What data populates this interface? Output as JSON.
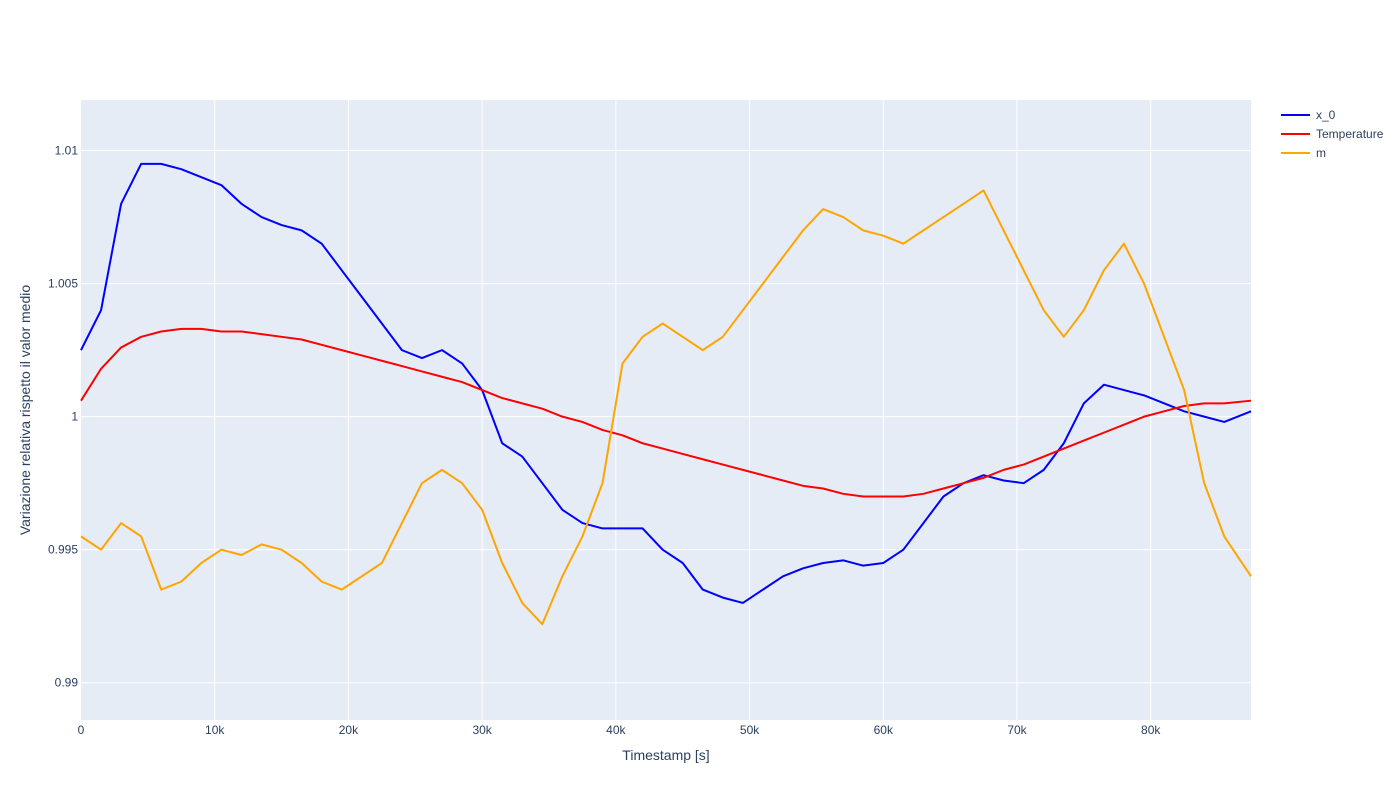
{
  "chart_data": {
    "type": "line",
    "title": "",
    "xlabel": "Timestamp [s]",
    "ylabel": "Variazione relativa rispetto il valor medio",
    "xlim": [
      0,
      87500
    ],
    "ylim": [
      0.9886,
      1.0119
    ],
    "x_ticks": [
      {
        "value": 0,
        "label": "0"
      },
      {
        "value": 10000,
        "label": "10k"
      },
      {
        "value": 20000,
        "label": "20k"
      },
      {
        "value": 30000,
        "label": "30k"
      },
      {
        "value": 40000,
        "label": "40k"
      },
      {
        "value": 50000,
        "label": "50k"
      },
      {
        "value": 60000,
        "label": "60k"
      },
      {
        "value": 70000,
        "label": "70k"
      },
      {
        "value": 80000,
        "label": "80k"
      }
    ],
    "y_ticks": [
      {
        "value": 0.99,
        "label": "0.99"
      },
      {
        "value": 0.995,
        "label": "0.995"
      },
      {
        "value": 1,
        "label": "1"
      },
      {
        "value": 1.005,
        "label": "1.005"
      },
      {
        "value": 1.01,
        "label": "1.01"
      }
    ],
    "grid": true,
    "legend_position": "top-right",
    "plot_background": "#e5ecf6",
    "series": [
      {
        "name": "x_0",
        "color": "#0000ff",
        "x": [
          0,
          1500,
          3000,
          4500,
          6000,
          7500,
          9000,
          10500,
          12000,
          13500,
          15000,
          16500,
          18000,
          19500,
          21000,
          22500,
          24000,
          25500,
          27000,
          28500,
          30000,
          31500,
          33000,
          34500,
          36000,
          37500,
          39000,
          40500,
          42000,
          43500,
          45000,
          46500,
          48000,
          49500,
          51000,
          52500,
          54000,
          55500,
          57000,
          58500,
          60000,
          61500,
          63000,
          64500,
          66000,
          67500,
          69000,
          70500,
          72000,
          73500,
          75000,
          76500,
          78000,
          79500,
          81000,
          82500,
          84000,
          85500,
          87500
        ],
        "y": [
          1.0025,
          1.004,
          1.008,
          1.0095,
          1.0095,
          1.0093,
          1.009,
          1.0087,
          1.008,
          1.0075,
          1.0072,
          1.007,
          1.0065,
          1.0055,
          1.0045,
          1.0035,
          1.0025,
          1.0022,
          1.0025,
          1.002,
          1.001,
          0.999,
          0.9985,
          0.9975,
          0.9965,
          0.996,
          0.9958,
          0.9958,
          0.9958,
          0.995,
          0.9945,
          0.9935,
          0.9932,
          0.993,
          0.9935,
          0.994,
          0.9943,
          0.9945,
          0.9946,
          0.9944,
          0.9945,
          0.995,
          0.996,
          0.997,
          0.9975,
          0.9978,
          0.9976,
          0.9975,
          0.998,
          0.999,
          1.0005,
          1.0012,
          1.001,
          1.0008,
          1.0005,
          1.0002,
          1.0,
          0.9998,
          1.0002
        ]
      },
      {
        "name": "Temperature",
        "color": "#ff0000",
        "x": [
          0,
          1500,
          3000,
          4500,
          6000,
          7500,
          9000,
          10500,
          12000,
          13500,
          15000,
          16500,
          18000,
          19500,
          21000,
          22500,
          24000,
          25500,
          27000,
          28500,
          30000,
          31500,
          33000,
          34500,
          36000,
          37500,
          39000,
          40500,
          42000,
          43500,
          45000,
          46500,
          48000,
          49500,
          51000,
          52500,
          54000,
          55500,
          57000,
          58500,
          60000,
          61500,
          63000,
          64500,
          66000,
          67500,
          69000,
          70500,
          72000,
          73500,
          75000,
          76500,
          78000,
          79500,
          81000,
          82500,
          84000,
          85500,
          87500
        ],
        "y": [
          1.0006,
          1.0018,
          1.0026,
          1.003,
          1.0032,
          1.0033,
          1.0033,
          1.0032,
          1.0032,
          1.0031,
          1.003,
          1.0029,
          1.0027,
          1.0025,
          1.0023,
          1.0021,
          1.0019,
          1.0017,
          1.0015,
          1.0013,
          1.001,
          1.0007,
          1.0005,
          1.0003,
          1.0,
          0.9998,
          0.9995,
          0.9993,
          0.999,
          0.9988,
          0.9986,
          0.9984,
          0.9982,
          0.998,
          0.9978,
          0.9976,
          0.9974,
          0.9973,
          0.9971,
          0.997,
          0.997,
          0.997,
          0.9971,
          0.9973,
          0.9975,
          0.9977,
          0.998,
          0.9982,
          0.9985,
          0.9988,
          0.9991,
          0.9994,
          0.9997,
          1.0,
          1.0002,
          1.0004,
          1.0005,
          1.0005,
          1.0006
        ]
      },
      {
        "name": "m",
        "color": "#ffa500",
        "x": [
          0,
          1500,
          3000,
          4500,
          6000,
          7500,
          9000,
          10500,
          12000,
          13500,
          15000,
          16500,
          18000,
          19500,
          21000,
          22500,
          24000,
          25500,
          27000,
          28500,
          30000,
          31500,
          33000,
          34500,
          36000,
          37500,
          39000,
          40500,
          42000,
          43500,
          45000,
          46500,
          48000,
          49500,
          51000,
          52500,
          54000,
          55500,
          57000,
          58500,
          60000,
          61500,
          63000,
          64500,
          66000,
          67500,
          69000,
          70500,
          72000,
          73500,
          75000,
          76500,
          78000,
          79500,
          81000,
          82500,
          84000,
          85500,
          87500
        ],
        "y": [
          0.9955,
          0.995,
          0.996,
          0.9955,
          0.9935,
          0.9938,
          0.9945,
          0.995,
          0.9948,
          0.9952,
          0.995,
          0.9945,
          0.9938,
          0.9935,
          0.994,
          0.9945,
          0.996,
          0.9975,
          0.998,
          0.9975,
          0.9965,
          0.9945,
          0.993,
          0.9922,
          0.994,
          0.9955,
          0.9975,
          1.002,
          1.003,
          1.0035,
          1.003,
          1.0025,
          1.003,
          1.004,
          1.005,
          1.006,
          1.007,
          1.0078,
          1.0075,
          1.007,
          1.0068,
          1.0065,
          1.007,
          1.0075,
          1.008,
          1.0085,
          1.007,
          1.0055,
          1.004,
          1.003,
          1.004,
          1.0055,
          1.0065,
          1.005,
          1.003,
          1.001,
          0.9975,
          0.9955,
          0.994
        ]
      }
    ]
  }
}
